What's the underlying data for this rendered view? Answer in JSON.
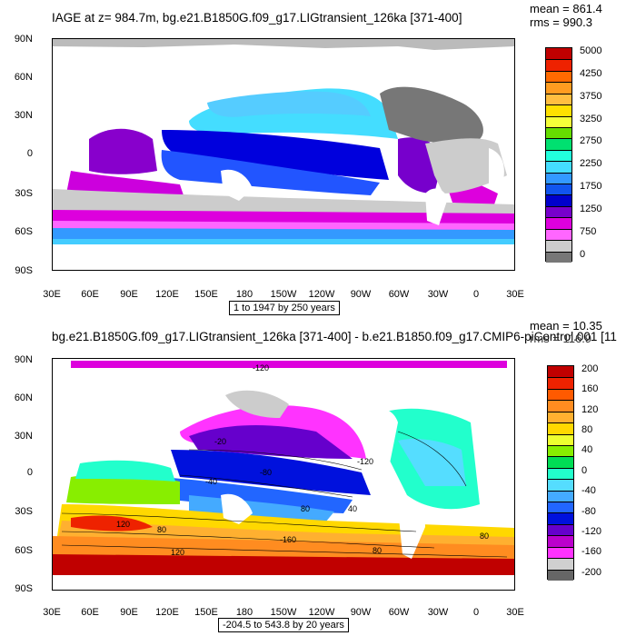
{
  "panels": [
    {
      "id": "top",
      "title": "IAGE at z= 984.7m, bg.e21.B1850G.f09_g17.LIGtransient_126ka [371-400]",
      "mean_label": "mean = 861.4",
      "rms_label": "rms = 990.3",
      "y_ticks": [
        "90N",
        "60N",
        "30N",
        "0",
        "30S",
        "60S",
        "90S"
      ],
      "x_ticks": [
        "30E",
        "60E",
        "90E",
        "120E",
        "150E",
        "180",
        "150W",
        "120W",
        "90W",
        "60W",
        "30W",
        "0",
        "30E"
      ],
      "caption": "1 to 1947 by 250 years",
      "colorbar_labels": [
        "5000",
        "4250",
        "3750",
        "3250",
        "2750",
        "2250",
        "1750",
        "1250",
        "750",
        "0"
      ],
      "colorbar_colors": [
        "#c00000",
        "#ee2200",
        "#ff6a00",
        "#ff9c20",
        "#ffbe40",
        "#ffe000",
        "#f5ff3a",
        "#66dd00",
        "#00e070",
        "#22ffdd",
        "#44ddff",
        "#3399ff",
        "#1155ee",
        "#0000cc",
        "#7700cc",
        "#dd00dd",
        "#ff66ff",
        "#cccccc",
        "#777777"
      ]
    },
    {
      "id": "bottom",
      "title": "bg.e21.B1850G.f09_g17.LIGtransient_126ka [371-400] - b.e21.B1850.f09_g17.CMIP6-piControl.001 [11",
      "mean_label": "mean = 10.35",
      "rms_label": "rms = 116.9",
      "y_ticks": [
        "90N",
        "60N",
        "30N",
        "0",
        "30S",
        "60S",
        "90S"
      ],
      "x_ticks": [
        "30E",
        "60E",
        "90E",
        "120E",
        "150E",
        "180",
        "150W",
        "120W",
        "90W",
        "60W",
        "30W",
        "0",
        "30E"
      ],
      "caption": "-204.5 to 543.8 by 20 years",
      "colorbar_labels": [
        "200",
        "160",
        "120",
        "80",
        "40",
        "0",
        "-40",
        "-80",
        "-120",
        "-160",
        "-200"
      ],
      "colorbar_colors": [
        "#c00000",
        "#ee2200",
        "#ff5a00",
        "#ff8c20",
        "#ffb030",
        "#ffd800",
        "#eeff30",
        "#88ee00",
        "#00dd55",
        "#22ffcc",
        "#55ddff",
        "#44aaff",
        "#2266ff",
        "#0011dd",
        "#6600cc",
        "#bb00cc",
        "#ff33ff",
        "#d0d0d0",
        "#666666"
      ],
      "contour_labels": [
        "-120",
        "-20",
        "-80",
        "-40",
        "-120",
        "-80",
        "-40",
        "40",
        "80",
        "120",
        "80",
        "40",
        "120",
        "80",
        "-160",
        "80",
        "-160",
        "-120",
        "80",
        "-80",
        "-80"
      ]
    }
  ]
}
